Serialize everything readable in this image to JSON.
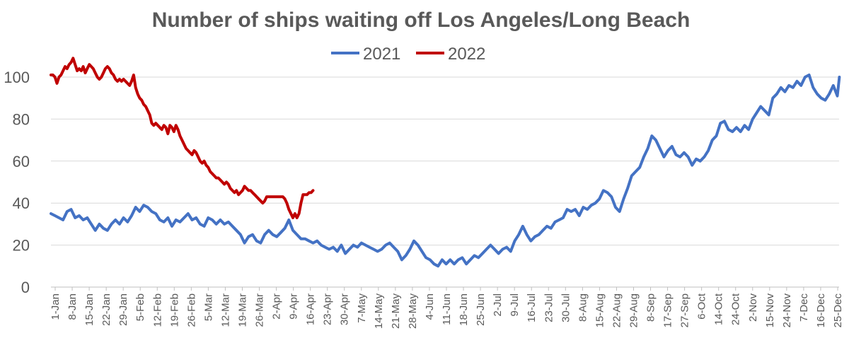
{
  "chart_data": {
    "type": "line",
    "title": "Number of ships waiting off Los Angeles/Long Beach",
    "legend_position": "top-center",
    "grid": "horizontal",
    "ylim": [
      0,
      110
    ],
    "yticks": [
      0,
      20,
      40,
      60,
      80,
      100
    ],
    "x_tick_labels": [
      "1-Jan",
      "8-Jan",
      "15-Jan",
      "22-Jan",
      "29-Jan",
      "5-Feb",
      "12-Feb",
      "19-Feb",
      "26-Feb",
      "5-Mar",
      "12-Mar",
      "19-Mar",
      "26-Mar",
      "2-Apr",
      "9-Apr",
      "16-Apr",
      "23-Apr",
      "30-Apr",
      "7-May",
      "14-May",
      "21-May",
      "28-May",
      "4-Jun",
      "11-Jun",
      "18-Jun",
      "25-Jun",
      "2-Jul",
      "9-Jul",
      "16-Jul",
      "23-Jul",
      "30-Jul",
      "8-Aug",
      "15-Aug",
      "22-Aug",
      "29-Aug",
      "8-Sep",
      "17-Sep",
      "27-Sep",
      "6-Oct",
      "14-Oct",
      "24-Oct",
      "2-Nov",
      "15-Nov",
      "24-Nov",
      "7-Dec",
      "16-Dec",
      "25-Dec"
    ],
    "series": [
      {
        "name": "2021",
        "color": "#4472C4",
        "points": [
          [
            0,
            35
          ],
          [
            2,
            34
          ],
          [
            4,
            33
          ],
          [
            6,
            32
          ],
          [
            8,
            36
          ],
          [
            10,
            37
          ],
          [
            12,
            33
          ],
          [
            14,
            34
          ],
          [
            16,
            32
          ],
          [
            18,
            33
          ],
          [
            20,
            30
          ],
          [
            22,
            27
          ],
          [
            24,
            30
          ],
          [
            26,
            28
          ],
          [
            28,
            27
          ],
          [
            30,
            30
          ],
          [
            32,
            32
          ],
          [
            34,
            30
          ],
          [
            36,
            33
          ],
          [
            38,
            31
          ],
          [
            40,
            34
          ],
          [
            42,
            38
          ],
          [
            44,
            36
          ],
          [
            46,
            39
          ],
          [
            48,
            38
          ],
          [
            50,
            36
          ],
          [
            52,
            35
          ],
          [
            54,
            32
          ],
          [
            56,
            31
          ],
          [
            58,
            33
          ],
          [
            60,
            29
          ],
          [
            62,
            32
          ],
          [
            64,
            31
          ],
          [
            66,
            33
          ],
          [
            68,
            35
          ],
          [
            70,
            32
          ],
          [
            72,
            33
          ],
          [
            74,
            30
          ],
          [
            76,
            29
          ],
          [
            78,
            33
          ],
          [
            80,
            32
          ],
          [
            82,
            30
          ],
          [
            84,
            32
          ],
          [
            86,
            30
          ],
          [
            88,
            31
          ],
          [
            90,
            29
          ],
          [
            92,
            27
          ],
          [
            94,
            25
          ],
          [
            96,
            21
          ],
          [
            98,
            24
          ],
          [
            100,
            25
          ],
          [
            102,
            22
          ],
          [
            104,
            21
          ],
          [
            106,
            25
          ],
          [
            108,
            27
          ],
          [
            110,
            25
          ],
          [
            112,
            24
          ],
          [
            114,
            26
          ],
          [
            116,
            28
          ],
          [
            118,
            32
          ],
          [
            120,
            27
          ],
          [
            122,
            25
          ],
          [
            124,
            23
          ],
          [
            126,
            23
          ],
          [
            128,
            22
          ],
          [
            130,
            21
          ],
          [
            132,
            22
          ],
          [
            134,
            20
          ],
          [
            136,
            19
          ],
          [
            138,
            18
          ],
          [
            140,
            19
          ],
          [
            142,
            17
          ],
          [
            144,
            20
          ],
          [
            146,
            16
          ],
          [
            148,
            18
          ],
          [
            150,
            20
          ],
          [
            152,
            19
          ],
          [
            154,
            21
          ],
          [
            156,
            20
          ],
          [
            158,
            19
          ],
          [
            160,
            18
          ],
          [
            162,
            17
          ],
          [
            164,
            18
          ],
          [
            166,
            20
          ],
          [
            168,
            21
          ],
          [
            170,
            19
          ],
          [
            172,
            17
          ],
          [
            174,
            13
          ],
          [
            176,
            15
          ],
          [
            178,
            18
          ],
          [
            180,
            22
          ],
          [
            182,
            20
          ],
          [
            184,
            17
          ],
          [
            186,
            14
          ],
          [
            188,
            13
          ],
          [
            190,
            11
          ],
          [
            192,
            10
          ],
          [
            194,
            13
          ],
          [
            196,
            11
          ],
          [
            198,
            13
          ],
          [
            200,
            11
          ],
          [
            202,
            13
          ],
          [
            204,
            14
          ],
          [
            206,
            11
          ],
          [
            208,
            13
          ],
          [
            210,
            15
          ],
          [
            212,
            14
          ],
          [
            214,
            16
          ],
          [
            216,
            18
          ],
          [
            218,
            20
          ],
          [
            220,
            18
          ],
          [
            222,
            16
          ],
          [
            224,
            18
          ],
          [
            226,
            19
          ],
          [
            228,
            17
          ],
          [
            230,
            22
          ],
          [
            232,
            25
          ],
          [
            234,
            29
          ],
          [
            236,
            25
          ],
          [
            238,
            22
          ],
          [
            240,
            24
          ],
          [
            242,
            25
          ],
          [
            244,
            27
          ],
          [
            246,
            29
          ],
          [
            248,
            28
          ],
          [
            250,
            31
          ],
          [
            252,
            32
          ],
          [
            254,
            33
          ],
          [
            256,
            37
          ],
          [
            258,
            36
          ],
          [
            260,
            37
          ],
          [
            262,
            34
          ],
          [
            264,
            38
          ],
          [
            266,
            37
          ],
          [
            268,
            39
          ],
          [
            270,
            40
          ],
          [
            272,
            42
          ],
          [
            274,
            46
          ],
          [
            276,
            45
          ],
          [
            278,
            43
          ],
          [
            280,
            38
          ],
          [
            282,
            36
          ],
          [
            284,
            42
          ],
          [
            286,
            47
          ],
          [
            288,
            53
          ],
          [
            290,
            55
          ],
          [
            292,
            57
          ],
          [
            294,
            62
          ],
          [
            296,
            66
          ],
          [
            298,
            72
          ],
          [
            300,
            70
          ],
          [
            302,
            66
          ],
          [
            304,
            62
          ],
          [
            306,
            65
          ],
          [
            308,
            67
          ],
          [
            310,
            63
          ],
          [
            312,
            62
          ],
          [
            314,
            64
          ],
          [
            316,
            62
          ],
          [
            318,
            58
          ],
          [
            320,
            61
          ],
          [
            322,
            60
          ],
          [
            324,
            62
          ],
          [
            326,
            65
          ],
          [
            328,
            70
          ],
          [
            330,
            72
          ],
          [
            332,
            78
          ],
          [
            334,
            79
          ],
          [
            336,
            75
          ],
          [
            338,
            74
          ],
          [
            340,
            76
          ],
          [
            342,
            74
          ],
          [
            344,
            77
          ],
          [
            346,
            75
          ],
          [
            348,
            80
          ],
          [
            350,
            83
          ],
          [
            352,
            86
          ],
          [
            354,
            84
          ],
          [
            356,
            82
          ],
          [
            358,
            90
          ],
          [
            360,
            92
          ],
          [
            362,
            95
          ],
          [
            364,
            93
          ],
          [
            366,
            96
          ],
          [
            368,
            95
          ],
          [
            370,
            98
          ],
          [
            372,
            96
          ],
          [
            374,
            100
          ],
          [
            376,
            101
          ],
          [
            378,
            95
          ],
          [
            380,
            92
          ],
          [
            382,
            90
          ],
          [
            384,
            89
          ],
          [
            386,
            92
          ],
          [
            388,
            96
          ],
          [
            390,
            91
          ],
          [
            391,
            100
          ]
        ]
      },
      {
        "name": "2022",
        "color": "#C00000",
        "points": [
          [
            0,
            101
          ],
          [
            1,
            101
          ],
          [
            2,
            100
          ],
          [
            3,
            97
          ],
          [
            4,
            100
          ],
          [
            5,
            101
          ],
          [
            6,
            103
          ],
          [
            7,
            105
          ],
          [
            8,
            104
          ],
          [
            9,
            106
          ],
          [
            10,
            107
          ],
          [
            11,
            109
          ],
          [
            12,
            106
          ],
          [
            13,
            103
          ],
          [
            14,
            104
          ],
          [
            15,
            103
          ],
          [
            16,
            105
          ],
          [
            17,
            102
          ],
          [
            18,
            104
          ],
          [
            19,
            106
          ],
          [
            20,
            105
          ],
          [
            21,
            104
          ],
          [
            22,
            102
          ],
          [
            23,
            100
          ],
          [
            24,
            99
          ],
          [
            25,
            100
          ],
          [
            26,
            102
          ],
          [
            27,
            104
          ],
          [
            28,
            105
          ],
          [
            29,
            104
          ],
          [
            30,
            102
          ],
          [
            31,
            101
          ],
          [
            32,
            99
          ],
          [
            33,
            98
          ],
          [
            34,
            99
          ],
          [
            35,
            98
          ],
          [
            36,
            99
          ],
          [
            37,
            98
          ],
          [
            38,
            97
          ],
          [
            39,
            96
          ],
          [
            40,
            98
          ],
          [
            41,
            101
          ],
          [
            42,
            95
          ],
          [
            43,
            92
          ],
          [
            44,
            90
          ],
          [
            45,
            89
          ],
          [
            46,
            87
          ],
          [
            47,
            86
          ],
          [
            48,
            84
          ],
          [
            49,
            82
          ],
          [
            50,
            78
          ],
          [
            51,
            77
          ],
          [
            52,
            78
          ],
          [
            53,
            77
          ],
          [
            54,
            76
          ],
          [
            55,
            75
          ],
          [
            56,
            77
          ],
          [
            57,
            76
          ],
          [
            58,
            73
          ],
          [
            59,
            77
          ],
          [
            60,
            76
          ],
          [
            61,
            74
          ],
          [
            62,
            77
          ],
          [
            63,
            75
          ],
          [
            64,
            72
          ],
          [
            65,
            70
          ],
          [
            66,
            68
          ],
          [
            67,
            66
          ],
          [
            68,
            65
          ],
          [
            69,
            64
          ],
          [
            70,
            63
          ],
          [
            71,
            65
          ],
          [
            72,
            64
          ],
          [
            73,
            62
          ],
          [
            74,
            60
          ],
          [
            75,
            59
          ],
          [
            76,
            60
          ],
          [
            77,
            58
          ],
          [
            78,
            57
          ],
          [
            79,
            55
          ],
          [
            80,
            54
          ],
          [
            81,
            53
          ],
          [
            82,
            52
          ],
          [
            83,
            52
          ],
          [
            84,
            51
          ],
          [
            85,
            50
          ],
          [
            86,
            49
          ],
          [
            87,
            50
          ],
          [
            88,
            49
          ],
          [
            89,
            47
          ],
          [
            90,
            46
          ],
          [
            91,
            45
          ],
          [
            92,
            46
          ],
          [
            93,
            44
          ],
          [
            94,
            45
          ],
          [
            95,
            46
          ],
          [
            96,
            48
          ],
          [
            97,
            47
          ],
          [
            98,
            46
          ],
          [
            99,
            46
          ],
          [
            100,
            45
          ],
          [
            101,
            44
          ],
          [
            102,
            43
          ],
          [
            103,
            42
          ],
          [
            104,
            41
          ],
          [
            105,
            40
          ],
          [
            106,
            41
          ],
          [
            107,
            43
          ],
          [
            108,
            43
          ],
          [
            109,
            43
          ],
          [
            110,
            43
          ],
          [
            111,
            43
          ],
          [
            112,
            43
          ],
          [
            113,
            43
          ],
          [
            114,
            43
          ],
          [
            115,
            43
          ],
          [
            116,
            42
          ],
          [
            117,
            40
          ],
          [
            118,
            37
          ],
          [
            119,
            35
          ],
          [
            120,
            33
          ],
          [
            121,
            35
          ],
          [
            122,
            33
          ],
          [
            123,
            35
          ],
          [
            124,
            40
          ],
          [
            125,
            44
          ],
          [
            126,
            44
          ],
          [
            127,
            44
          ],
          [
            128,
            45
          ],
          [
            129,
            45
          ],
          [
            130,
            46
          ]
        ]
      }
    ]
  }
}
